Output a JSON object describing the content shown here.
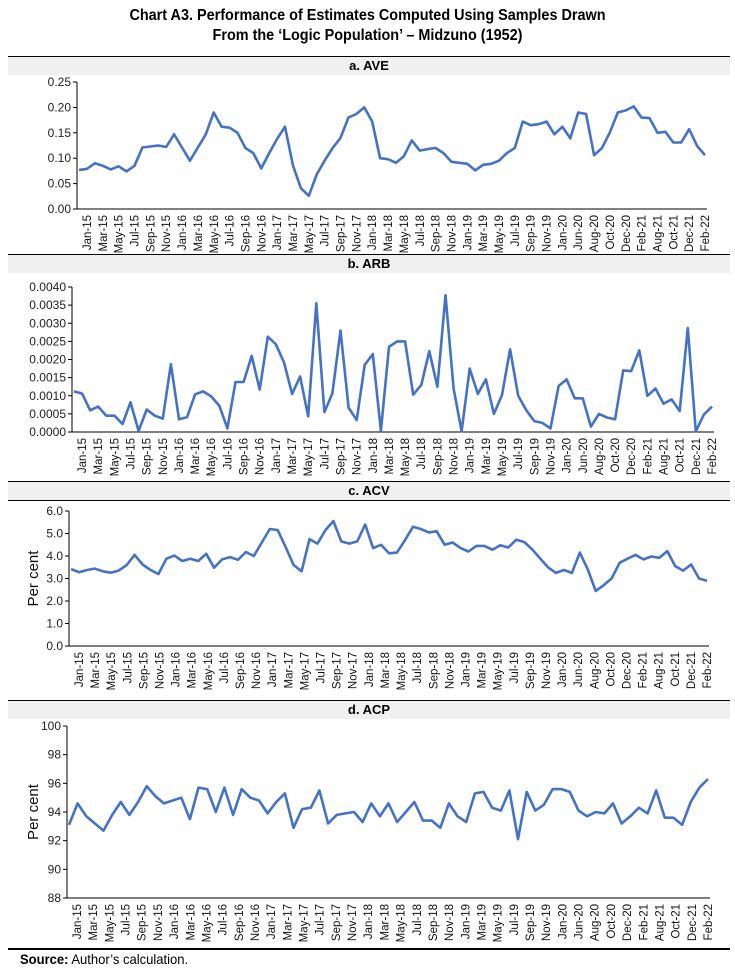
{
  "title_line1": "Chart A3. Performance of Estimates Computed Using Samples Drawn",
  "title_line2": "From the ‘Logic Population’ – Midzuno (1952)",
  "source_label": "Source:",
  "source_text": " Author’s calculation.",
  "series_color": "#4472c4",
  "chart_data": [
    {
      "type": "line",
      "panel": "a",
      "title": "a.   AVE",
      "xlabel": "",
      "ylabel": "",
      "ylim": [
        0,
        0.25
      ],
      "yticks": [
        "0.00",
        "0.05",
        "0.10",
        "0.15",
        "0.20",
        "0.25"
      ],
      "ytick_values": [
        0,
        0.05,
        0.1,
        0.15,
        0.2,
        0.25
      ],
      "grid": false,
      "xtick_labels": [
        "Jan-15",
        "Mar-15",
        "May-15",
        "Jul-15",
        "Sep-15",
        "Nov-15",
        "Jan-16",
        "Mar-16",
        "May-16",
        "Jul-16",
        "Sep-16",
        "Nov-16",
        "Jan-17",
        "Mar-17",
        "May-17",
        "Jul-17",
        "Sep-17",
        "Nov-17",
        "Jan-18",
        "Mar-18",
        "May-18",
        "Jul-18",
        "Sep-18",
        "Nov-18",
        "Jan-19",
        "Mar-19",
        "May-19",
        "Jul-19",
        "Sep-19",
        "Nov-19",
        "Jan-20",
        "Jun-20",
        "Aug-20",
        "Oct-20",
        "Dec-20",
        "Feb-21",
        "Aug-21",
        "Oct-21",
        "Dec-21",
        "Feb-22"
      ],
      "values": [
        0.077,
        0.079,
        0.09,
        0.085,
        0.078,
        0.084,
        0.074,
        0.085,
        0.121,
        0.123,
        0.125,
        0.122,
        0.147,
        0.121,
        0.095,
        0.121,
        0.147,
        0.19,
        0.162,
        0.16,
        0.15,
        0.12,
        0.11,
        0.08,
        0.11,
        0.138,
        0.162,
        0.086,
        0.041,
        0.026,
        0.068,
        0.095,
        0.12,
        0.14,
        0.18,
        0.187,
        0.2,
        0.172,
        0.1,
        0.098,
        0.091,
        0.104,
        0.135,
        0.115,
        0.118,
        0.12,
        0.11,
        0.093,
        0.091,
        0.089,
        0.076,
        0.087,
        0.089,
        0.095,
        0.11,
        0.12,
        0.172,
        0.165,
        0.167,
        0.172,
        0.147,
        0.162,
        0.139,
        0.19,
        0.187,
        0.106,
        0.12,
        0.151,
        0.19,
        0.194,
        0.202,
        0.18,
        0.179,
        0.15,
        0.152,
        0.131,
        0.131,
        0.157,
        0.124,
        0.106
      ]
    },
    {
      "type": "line",
      "panel": "b",
      "title": "b.   ARB",
      "xlabel": "",
      "ylabel": "",
      "ylim": [
        0,
        0.004
      ],
      "yticks": [
        "0.0000",
        "0.0005",
        "0.0010",
        "0.0015",
        "0.0020",
        "0.0025",
        "0.0030",
        "0.0035",
        "0.0040"
      ],
      "ytick_values": [
        0,
        0.0005,
        0.001,
        0.0015,
        0.002,
        0.0025,
        0.003,
        0.0035,
        0.004
      ],
      "grid": false,
      "xtick_labels": [
        "Jan-15",
        "Mar-15",
        "May-15",
        "Jul-15",
        "Sep-15",
        "Nov-15",
        "Jan-16",
        "Mar-16",
        "May-16",
        "Jul-16",
        "Sep-16",
        "Nov-16",
        "Jan-17",
        "Mar-17",
        "May-17",
        "Jul-17",
        "Sep-17",
        "Nov-17",
        "Jan-18",
        "Mar-18",
        "May-18",
        "Jul-18",
        "Sep-18",
        "Nov-18",
        "Jan-19",
        "Mar-19",
        "May-19",
        "Jul-19",
        "Sep-19",
        "Nov-19",
        "Jan-20",
        "Jun-20",
        "Aug-20",
        "Oct-20",
        "Dec-20",
        "Feb-21",
        "Aug-21",
        "Oct-21",
        "Dec-21",
        "Feb-22"
      ],
      "values": [
        0.00112,
        0.00106,
        0.0006,
        0.0007,
        0.00045,
        0.00045,
        0.00022,
        0.00082,
        3e-05,
        0.00062,
        0.00045,
        0.00037,
        0.00187,
        0.00035,
        0.00041,
        0.00104,
        0.00112,
        0.00098,
        0.00072,
        0.0001,
        0.00138,
        0.00138,
        0.0021,
        0.00117,
        0.00263,
        0.00242,
        0.00192,
        0.00105,
        0.00153,
        0.00043,
        0.00355,
        0.00055,
        0.00107,
        0.0028,
        0.00067,
        0.00033,
        0.00185,
        0.00215,
        3e-05,
        0.00235,
        0.0025,
        0.0025,
        0.00103,
        0.0013,
        0.00223,
        0.00125,
        0.00377,
        0.0012,
        2e-05,
        0.00175,
        0.00105,
        0.00145,
        0.0005,
        0.00102,
        0.00228,
        0.001,
        0.0006,
        0.0003,
        0.00025,
        0.0001,
        0.00127,
        0.00145,
        0.00093,
        0.00093,
        0.00015,
        0.0005,
        0.0004,
        0.00035,
        0.0017,
        0.00168,
        0.00225,
        0.001,
        0.0012,
        0.00078,
        0.0009,
        0.00058,
        0.00287,
        2e-05,
        0.00048,
        0.0007
      ]
    },
    {
      "type": "line",
      "panel": "c",
      "title": "c.   ACV",
      "xlabel": "",
      "ylabel": "Per cent",
      "ylim": [
        0,
        6
      ],
      "yticks": [
        "0.0",
        "1.0",
        "2.0",
        "3.0",
        "4.0",
        "5.0",
        "6.0"
      ],
      "ytick_values": [
        0,
        1,
        2,
        3,
        4,
        5,
        6
      ],
      "grid": false,
      "xtick_labels": [
        "Jan-15",
        "Mar-15",
        "May-15",
        "Jul-15",
        "Sep-15",
        "Nov-15",
        "Jan-16",
        "Mar-16",
        "May-16",
        "Jul-16",
        "Sep-16",
        "Nov-16",
        "Jan-17",
        "Mar-17",
        "May-17",
        "Jul-17",
        "Sep-17",
        "Nov-17",
        "Jan-18",
        "Mar-18",
        "May-18",
        "Jul-18",
        "Sep-18",
        "Nov-18",
        "Jan-19",
        "Mar-19",
        "May-19",
        "Jul-19",
        "Sep-19",
        "Nov-19",
        "Jan-20",
        "Jun-20",
        "Aug-20",
        "Oct-20",
        "Dec-20",
        "Feb-21",
        "Aug-21",
        "Oct-21",
        "Dec-21",
        "Feb-22"
      ],
      "values": [
        3.42,
        3.28,
        3.38,
        3.44,
        3.32,
        3.26,
        3.35,
        3.6,
        4.05,
        3.62,
        3.38,
        3.2,
        3.88,
        4.02,
        3.78,
        3.88,
        3.78,
        4.1,
        3.48,
        3.85,
        3.95,
        3.83,
        4.18,
        4.0,
        4.6,
        5.2,
        5.15,
        4.4,
        3.6,
        3.32,
        4.75,
        4.55,
        5.15,
        5.55,
        4.65,
        4.55,
        4.65,
        5.4,
        4.35,
        4.5,
        4.12,
        4.15,
        4.7,
        5.3,
        5.2,
        5.05,
        5.1,
        4.5,
        4.6,
        4.35,
        4.2,
        4.45,
        4.45,
        4.28,
        4.48,
        4.38,
        4.72,
        4.62,
        4.3,
        3.9,
        3.5,
        3.25,
        3.38,
        3.25,
        4.15,
        3.4,
        2.45,
        2.7,
        3.0,
        3.7,
        3.88,
        4.05,
        3.85,
        3.98,
        3.92,
        4.22,
        3.55,
        3.35,
        3.62,
        3.0,
        2.9
      ]
    },
    {
      "type": "line",
      "panel": "d",
      "title": "d.   ACP",
      "xlabel": "",
      "ylabel": "Per cent",
      "ylim": [
        88,
        100
      ],
      "yticks": [
        "88",
        "90",
        "92",
        "94",
        "96",
        "98",
        "100"
      ],
      "ytick_values": [
        88,
        90,
        92,
        94,
        96,
        98,
        100
      ],
      "grid": false,
      "xtick_labels": [
        "Jan-15",
        "Mar-15",
        "May-15",
        "Jul-15",
        "Sep-15",
        "Nov-15",
        "Jan-16",
        "Mar-16",
        "May-16",
        "Jul-16",
        "Sep-16",
        "Nov-16",
        "Jan-17",
        "Mar-17",
        "May-17",
        "Jul-17",
        "Sep-17",
        "Nov-17",
        "Jan-18",
        "Mar-18",
        "May-18",
        "Jul-18",
        "Sep-18",
        "Nov-18",
        "Jan-19",
        "Mar-19",
        "May-19",
        "Jul-19",
        "Sep-19",
        "Nov-19",
        "Jan-20",
        "Jun-20",
        "Aug-20",
        "Oct-20",
        "Dec-20",
        "Feb-21",
        "Aug-21",
        "Oct-21",
        "Dec-21",
        "Feb-22"
      ],
      "values": [
        93.1,
        94.6,
        93.7,
        93.2,
        92.7,
        93.8,
        94.7,
        93.8,
        94.7,
        95.8,
        95.1,
        94.6,
        94.8,
        95.0,
        93.5,
        95.7,
        95.6,
        94.0,
        95.7,
        93.8,
        95.6,
        95.0,
        94.8,
        93.9,
        94.7,
        95.3,
        92.9,
        94.2,
        94.3,
        95.5,
        93.2,
        93.8,
        93.9,
        94.0,
        93.3,
        94.6,
        93.7,
        94.6,
        93.3,
        94.0,
        94.7,
        93.4,
        93.4,
        92.9,
        94.6,
        93.7,
        93.3,
        95.3,
        95.4,
        94.3,
        94.1,
        95.5,
        92.1,
        95.4,
        94.1,
        94.5,
        95.6,
        95.6,
        95.4,
        94.1,
        93.7,
        94.0,
        93.9,
        94.6,
        93.2,
        93.7,
        94.3,
        93.9,
        95.5,
        93.6,
        93.6,
        93.1,
        94.7,
        95.7,
        96.3
      ]
    }
  ]
}
